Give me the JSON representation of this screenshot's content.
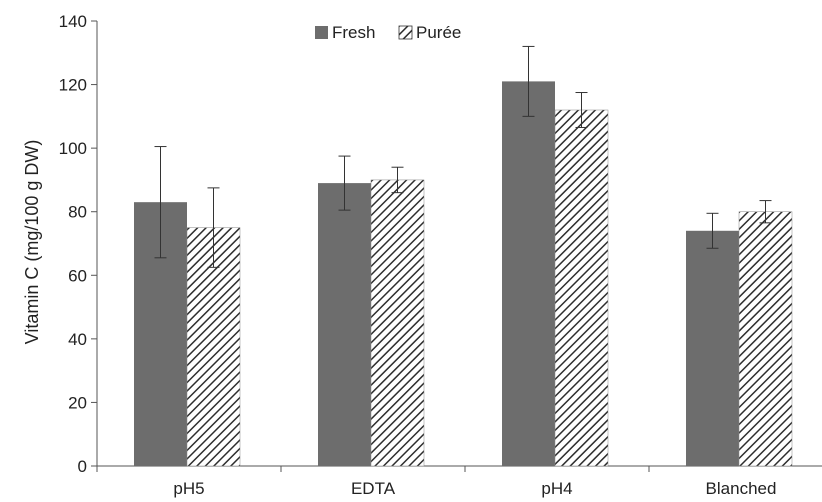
{
  "chart_data": {
    "type": "bar",
    "categories": [
      "pH5",
      "EDTA",
      "pH4",
      "Blanched"
    ],
    "series": [
      {
        "name": "Fresh",
        "values": [
          83,
          89,
          121,
          74
        ],
        "errors": [
          17.5,
          8.5,
          11,
          5.5
        ],
        "fill": "solid",
        "color": "#6d6d6d"
      },
      {
        "name": "Purée",
        "values": [
          75,
          90,
          112,
          80
        ],
        "errors": [
          12.5,
          4,
          5.5,
          3.5
        ],
        "fill": "hatched",
        "color": "#3a3a3a"
      }
    ],
    "ylabel": "Vitamin C (mg/100 g DW)",
    "xlabel": "",
    "ylim": [
      0,
      140
    ],
    "yticks": [
      0,
      20,
      40,
      60,
      80,
      100,
      120,
      140
    ],
    "grid": false,
    "legend_position": "top-center"
  }
}
